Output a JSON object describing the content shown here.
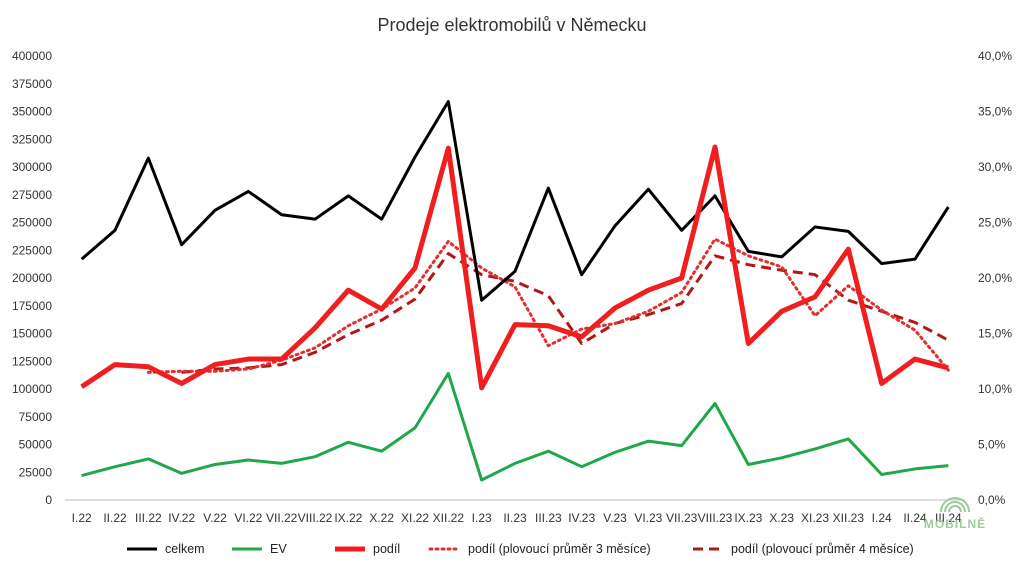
{
  "chart_data": {
    "type": "line",
    "title": "Prodeje elektromobilů v Německu",
    "categories": [
      "I.22",
      "II.22",
      "III.22",
      "IV.22",
      "V.22",
      "VI.22",
      "VII.22",
      "VIII.22",
      "IX.22",
      "X.22",
      "XI.22",
      "XII.22",
      "I.23",
      "II.23",
      "III.23",
      "IV.23",
      "V.23",
      "VI.23",
      "VII.23",
      "VIII.23",
      "IX.23",
      "X.23",
      "XI.23",
      "XII.23",
      "I.24",
      "II.24",
      "III.24"
    ],
    "y_left": {
      "min": 0,
      "max": 400000,
      "step": 25000,
      "tick_labels": [
        "0",
        "25000",
        "50000",
        "75000",
        "100000",
        "125000",
        "150000",
        "175000",
        "200000",
        "225000",
        "250000",
        "275000",
        "300000",
        "325000",
        "350000",
        "375000",
        "400000"
      ]
    },
    "y_right": {
      "min": 0,
      "max": 40,
      "step": 5,
      "tick_labels": [
        "0,0%",
        "5,0%",
        "10,0%",
        "15,0%",
        "20,0%",
        "25,0%",
        "30,0%",
        "35,0%",
        "40,0%"
      ]
    },
    "grid": false,
    "legend_position": "bottom",
    "series": [
      {
        "name": "celkem",
        "axis": "left",
        "color": "#000000",
        "style": "solid",
        "width": 3,
        "values": [
          217000,
          243000,
          308000,
          230000,
          261000,
          278000,
          257000,
          253000,
          274000,
          253000,
          309000,
          359000,
          180000,
          206000,
          281000,
          203000,
          247000,
          280000,
          243000,
          274000,
          224000,
          219000,
          246000,
          242000,
          213000,
          217000,
          264000
        ]
      },
      {
        "name": "EV",
        "axis": "left",
        "color": "#1fa84a",
        "style": "solid",
        "width": 3,
        "values": [
          22000,
          30000,
          37000,
          24000,
          32000,
          36000,
          33000,
          39000,
          52000,
          44000,
          65000,
          114000,
          18000,
          33000,
          44000,
          30000,
          43000,
          53000,
          49000,
          87000,
          32000,
          38000,
          46000,
          55000,
          23000,
          28000,
          31000
        ]
      },
      {
        "name": "podíl",
        "axis": "right",
        "color": "#f01e1e",
        "style": "solid",
        "width": 5,
        "values": [
          10.2,
          12.2,
          12.0,
          10.5,
          12.2,
          12.7,
          12.7,
          15.5,
          18.9,
          17.2,
          20.9,
          31.7,
          10.1,
          15.8,
          15.7,
          14.7,
          17.3,
          18.9,
          20.0,
          31.8,
          14.1,
          17.0,
          18.3,
          22.6,
          10.5,
          12.7,
          11.9
        ]
      },
      {
        "name": "podíl (plovoucí průměr 3 měsíce)",
        "axis": "right",
        "color": "#e03030",
        "style": "dotted",
        "width": 3,
        "values": [
          null,
          null,
          11.5,
          11.6,
          11.6,
          11.8,
          12.6,
          13.7,
          15.7,
          17.2,
          19.1,
          23.3,
          20.9,
          19.2,
          13.9,
          15.4,
          15.9,
          17.0,
          18.7,
          23.5,
          22.0,
          21.0,
          16.6,
          19.3,
          17.1,
          15.3,
          11.7
        ]
      },
      {
        "name": "podíl (plovoucí průměr 4 měsíce)",
        "axis": "right",
        "color": "#b01818",
        "style": "dashed",
        "width": 3,
        "values": [
          null,
          null,
          null,
          11.5,
          11.8,
          11.9,
          12.2,
          13.3,
          14.9,
          16.2,
          18.1,
          22.2,
          20.3,
          19.7,
          18.4,
          14.1,
          15.9,
          16.7,
          17.7,
          22.0,
          21.2,
          20.7,
          20.3,
          18.0,
          17.0,
          16.0,
          14.4
        ]
      }
    ]
  },
  "watermark": "MOBILNĚ"
}
